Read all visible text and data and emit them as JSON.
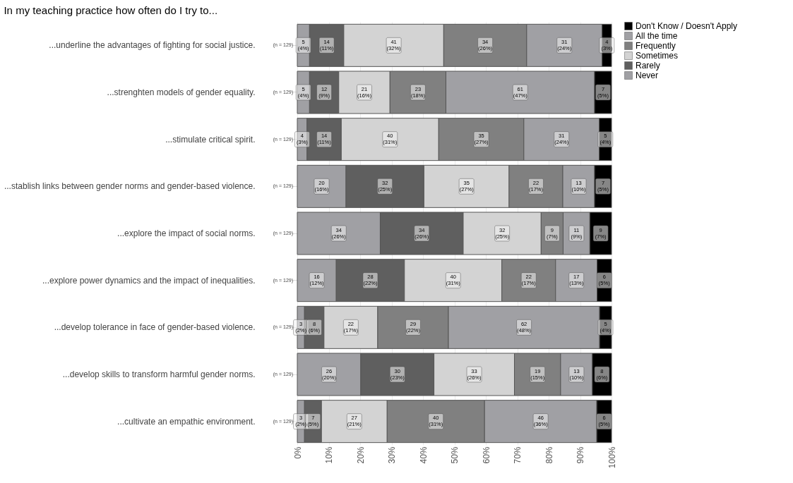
{
  "chart_data": {
    "type": "bar",
    "orientation": "horizontal",
    "stacked": true,
    "title": "In my teaching practice how often do I try to...",
    "categories": [
      "...underline the advantages of fighting for social justice.",
      "...strenghten models of gender equality.",
      "...stimulate critical spirit.",
      "...stablish links between gender norms and gender-based violence.",
      "...explore the impact of social norms.",
      "...explore power dynamics and the impact of inequalities.",
      "...develop tolerance in face of gender-based violence.",
      "...develop skills to transform harmful gender norms.",
      "...cultivate an empathic environment."
    ],
    "series": [
      {
        "name": "Never",
        "color": "#a0a0a4",
        "values": [
          3.9,
          3.9,
          3.1,
          15.5,
          26.4,
          12.4,
          2.3,
          20.2,
          2.3
        ],
        "value_labels": [
          "5\n(4%)",
          "5\n(4%)",
          "4\n(3%)",
          "20\n(16%)",
          "34\n(26%)",
          "16\n(12%)",
          "3\n(2%)",
          "26\n(20%)",
          "3\n(2%)"
        ]
      },
      {
        "name": "Rarely",
        "color": "#5f5f5f",
        "values": [
          10.9,
          9.3,
          10.9,
          24.8,
          26.4,
          21.7,
          6.2,
          23.3,
          5.4
        ],
        "value_labels": [
          "14\n(11%)",
          "12\n(9%)",
          "14\n(11%)",
          "32\n(25%)",
          "34\n(26%)",
          "28\n(22%)",
          "8\n(6%)",
          "30\n(23%)",
          "7\n(5%)"
        ]
      },
      {
        "name": "Sometimes",
        "color": "#d3d3d3",
        "values": [
          31.8,
          16.3,
          31.0,
          27.1,
          24.8,
          31.0,
          17.1,
          25.6,
          20.9
        ],
        "value_labels": [
          "41\n(32%)",
          "21\n(16%)",
          "40\n(31%)",
          "35\n(27%)",
          "32\n(25%)",
          "40\n(31%)",
          "22\n(17%)",
          "33\n(26%)",
          "27\n(21%)"
        ]
      },
      {
        "name": "Frequently",
        "color": "#808080",
        "values": [
          26.4,
          17.8,
          27.1,
          17.1,
          7.0,
          17.1,
          22.5,
          14.7,
          31.0
        ],
        "value_labels": [
          "34\n(26%)",
          "23\n(18%)",
          "35\n(27%)",
          "22\n(17%)",
          "9\n(7%)",
          "22\n(17%)",
          "29\n(22%)",
          "19\n(15%)",
          "40\n(31%)"
        ]
      },
      {
        "name": "All the time",
        "color": "#a0a0a4",
        "values": [
          24.0,
          47.3,
          24.0,
          10.1,
          8.5,
          13.2,
          48.1,
          10.1,
          35.7
        ],
        "value_labels": [
          "31\n(24%)",
          "61\n(47%)",
          "31\n(24%)",
          "13\n(10%)",
          "11\n(9%)",
          "17\n(13%)",
          "62\n(48%)",
          "13\n(10%)",
          "46\n(36%)"
        ]
      },
      {
        "name": "Don't Know / Doesn't Apply",
        "color": "#000000",
        "values": [
          3.0,
          5.4,
          3.9,
          5.4,
          6.9,
          4.6,
          3.8,
          6.1,
          4.7
        ],
        "value_labels": [
          "4\n(3%)",
          "7\n(5%)",
          "5\n(4%)",
          "7\n(5%)",
          "9\n(7%)",
          "6\n(5%)",
          "5\n(4%)",
          "8\n(6%)",
          "6\n(5%)"
        ]
      }
    ],
    "annotations": [
      "(n = 129)",
      "(n = 129)",
      "(n = 129)",
      "(n = 129)",
      "(n = 129)",
      "(n = 129)",
      "(n = 129)",
      "(n = 129)",
      "(n = 129)"
    ],
    "xlim": [
      0,
      100
    ],
    "xticks": [
      {
        "value": 0,
        "label": "0%"
      },
      {
        "value": 10,
        "label": "10%"
      },
      {
        "value": 20,
        "label": "20%"
      },
      {
        "value": 30,
        "label": "30%"
      },
      {
        "value": 40,
        "label": "40%"
      },
      {
        "value": 50,
        "label": "50%"
      },
      {
        "value": 60,
        "label": "60%"
      },
      {
        "value": 70,
        "label": "70%"
      },
      {
        "value": 80,
        "label": "80%"
      },
      {
        "value": 90,
        "label": "90%"
      },
      {
        "value": 100,
        "label": "100%"
      }
    ],
    "grid": true,
    "legend": "right"
  }
}
